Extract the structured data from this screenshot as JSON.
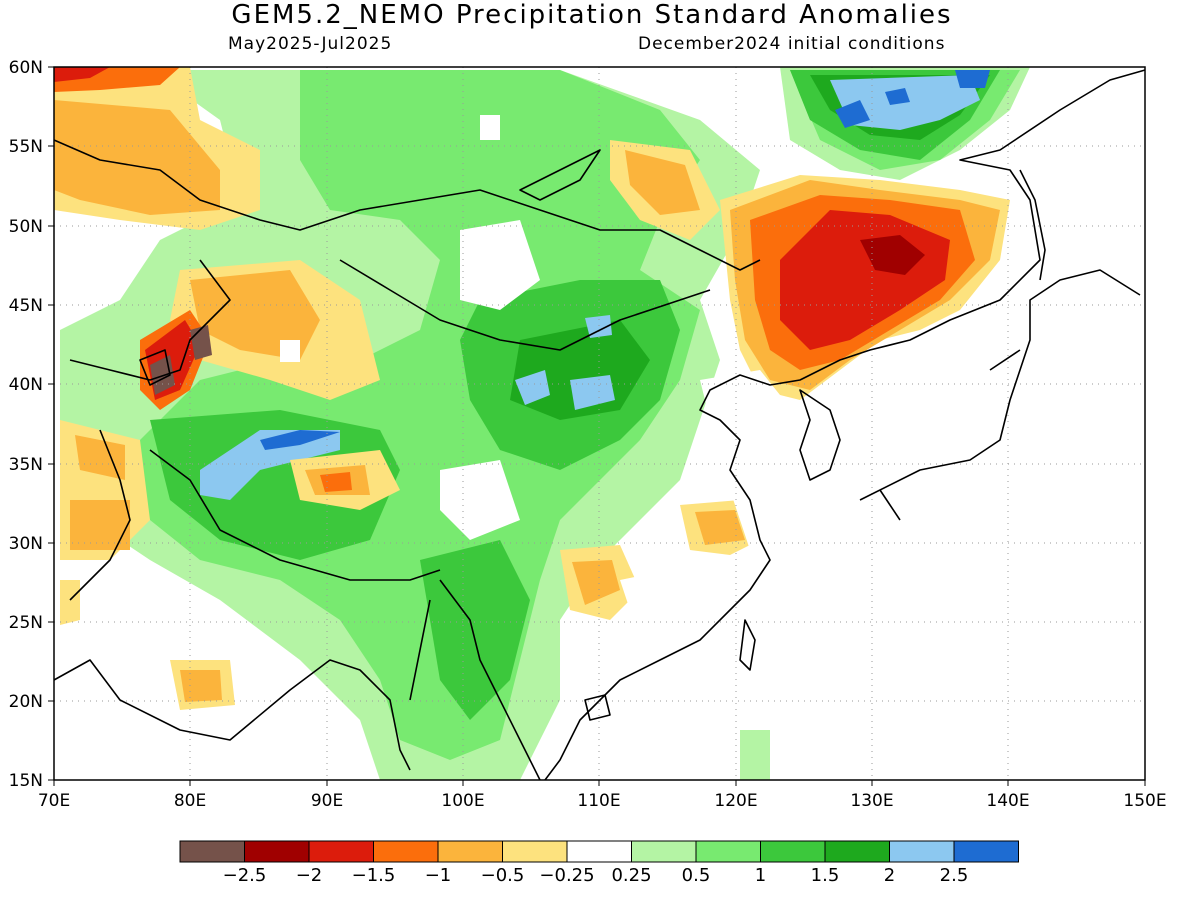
{
  "title": "GEM5.2_NEMO Precipitation Standard Anomalies",
  "period": "May2025-Jul2025",
  "initial_conditions": "December2024 initial conditions",
  "map": {
    "lon_range": [
      70,
      150
    ],
    "lat_range": [
      15,
      60
    ],
    "lon_ticks": [
      "70E",
      "80E",
      "90E",
      "100E",
      "110E",
      "120E",
      "130E",
      "140E",
      "150E"
    ],
    "lat_ticks": [
      "60N",
      "55N",
      "50N",
      "45N",
      "40N",
      "35N",
      "30N",
      "25N",
      "20N",
      "15N"
    ],
    "grid": "dotted every 10° longitude and 5° latitude"
  },
  "colorbar": {
    "colors": [
      "#75524a",
      "#a00000",
      "#dc1c0c",
      "#fb6e0c",
      "#fbb43c",
      "#fde27e",
      "#ffffff",
      "#b4f4a4",
      "#78ea70",
      "#3cc83c",
      "#1ea91e",
      "#8cc8f0",
      "#1e6cd2"
    ],
    "labels": [
      "-2.5",
      "-2",
      "-1.5",
      "-1",
      "-0.5",
      "-0.25",
      "0.25",
      "0.5",
      "1",
      "1.5",
      "2",
      "2.5"
    ]
  },
  "palette": {
    "dry_extreme": "#75524a",
    "dry_strong": "#a00000",
    "dry": "#dc1c0c",
    "dry_moderate": "#fb6e0c",
    "dry_weak": "#fbb43c",
    "dry_slight": "#fde27e",
    "neutral": "#ffffff",
    "wet_slight": "#b4f4a4",
    "wet_weak": "#78ea70",
    "wet_moderate": "#3cc83c",
    "wet": "#1ea91e",
    "wet_strong": "#8cc8f0",
    "wet_extreme": "#1e6cd2"
  }
}
